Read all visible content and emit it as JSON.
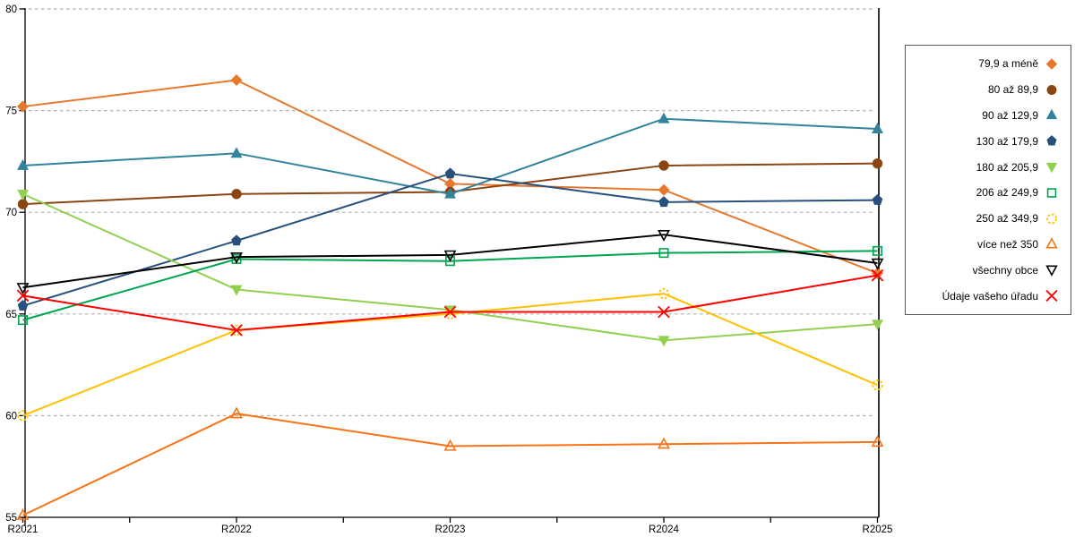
{
  "chart_data": {
    "type": "line",
    "title": "",
    "xlabel": "",
    "ylabel": "",
    "categories": [
      "R2021",
      "R2022",
      "R2023",
      "R2024",
      "R2025"
    ],
    "ylim": [
      55,
      80
    ],
    "y_ticks": [
      55,
      60,
      65,
      70,
      75,
      80
    ],
    "grid": "horizontal-dashed",
    "grid_color": "#b0b0b0",
    "axis_color": "#000000",
    "legend_position": "right",
    "series": [
      {
        "name": "79,9 a méně",
        "color": "#e8772e",
        "marker": "diamond",
        "fill": "filled",
        "values": [
          75.2,
          76.5,
          71.4,
          71.1,
          67.0
        ]
      },
      {
        "name": "80 až 89,9",
        "color": "#8b4513",
        "marker": "circle",
        "fill": "filled",
        "values": [
          70.4,
          70.9,
          71.0,
          72.3,
          72.4
        ]
      },
      {
        "name": "90 až 129,9",
        "color": "#31849b",
        "marker": "triangle-up",
        "fill": "filled",
        "values": [
          72.3,
          72.9,
          70.9,
          74.6,
          74.1
        ]
      },
      {
        "name": "130 až 179,9",
        "color": "#27507d",
        "marker": "pentagon",
        "fill": "filled",
        "values": [
          65.4,
          68.6,
          71.9,
          70.5,
          70.6
        ]
      },
      {
        "name": "180 až 205,9",
        "color": "#92d050",
        "marker": "triangle-down",
        "fill": "filled",
        "values": [
          70.9,
          66.2,
          65.2,
          63.7,
          64.5
        ]
      },
      {
        "name": "206 až 249,9",
        "color": "#00a550",
        "marker": "square",
        "fill": "hollow",
        "values": [
          64.7,
          67.7,
          67.6,
          68.0,
          68.1
        ]
      },
      {
        "name": "250 až 349,9",
        "color": "#ffc000",
        "marker": "circle-dashed",
        "fill": "hollow",
        "values": [
          60.0,
          64.2,
          65.0,
          66.0,
          61.5
        ]
      },
      {
        "name": "více než 350",
        "color": "#f97316",
        "marker": "triangle-up",
        "fill": "hollow",
        "values": [
          55.1,
          60.1,
          58.5,
          58.6,
          58.7
        ]
      },
      {
        "name": "všechny obce",
        "color": "#000000",
        "marker": "triangle-down",
        "fill": "hollow",
        "values": [
          66.3,
          67.8,
          67.9,
          68.9,
          67.5
        ]
      },
      {
        "name": "Údaje vašeho úřadu",
        "color": "#ff0000",
        "marker": "x",
        "fill": "hollow",
        "values": [
          65.9,
          64.2,
          65.1,
          65.1,
          66.9
        ]
      }
    ]
  }
}
